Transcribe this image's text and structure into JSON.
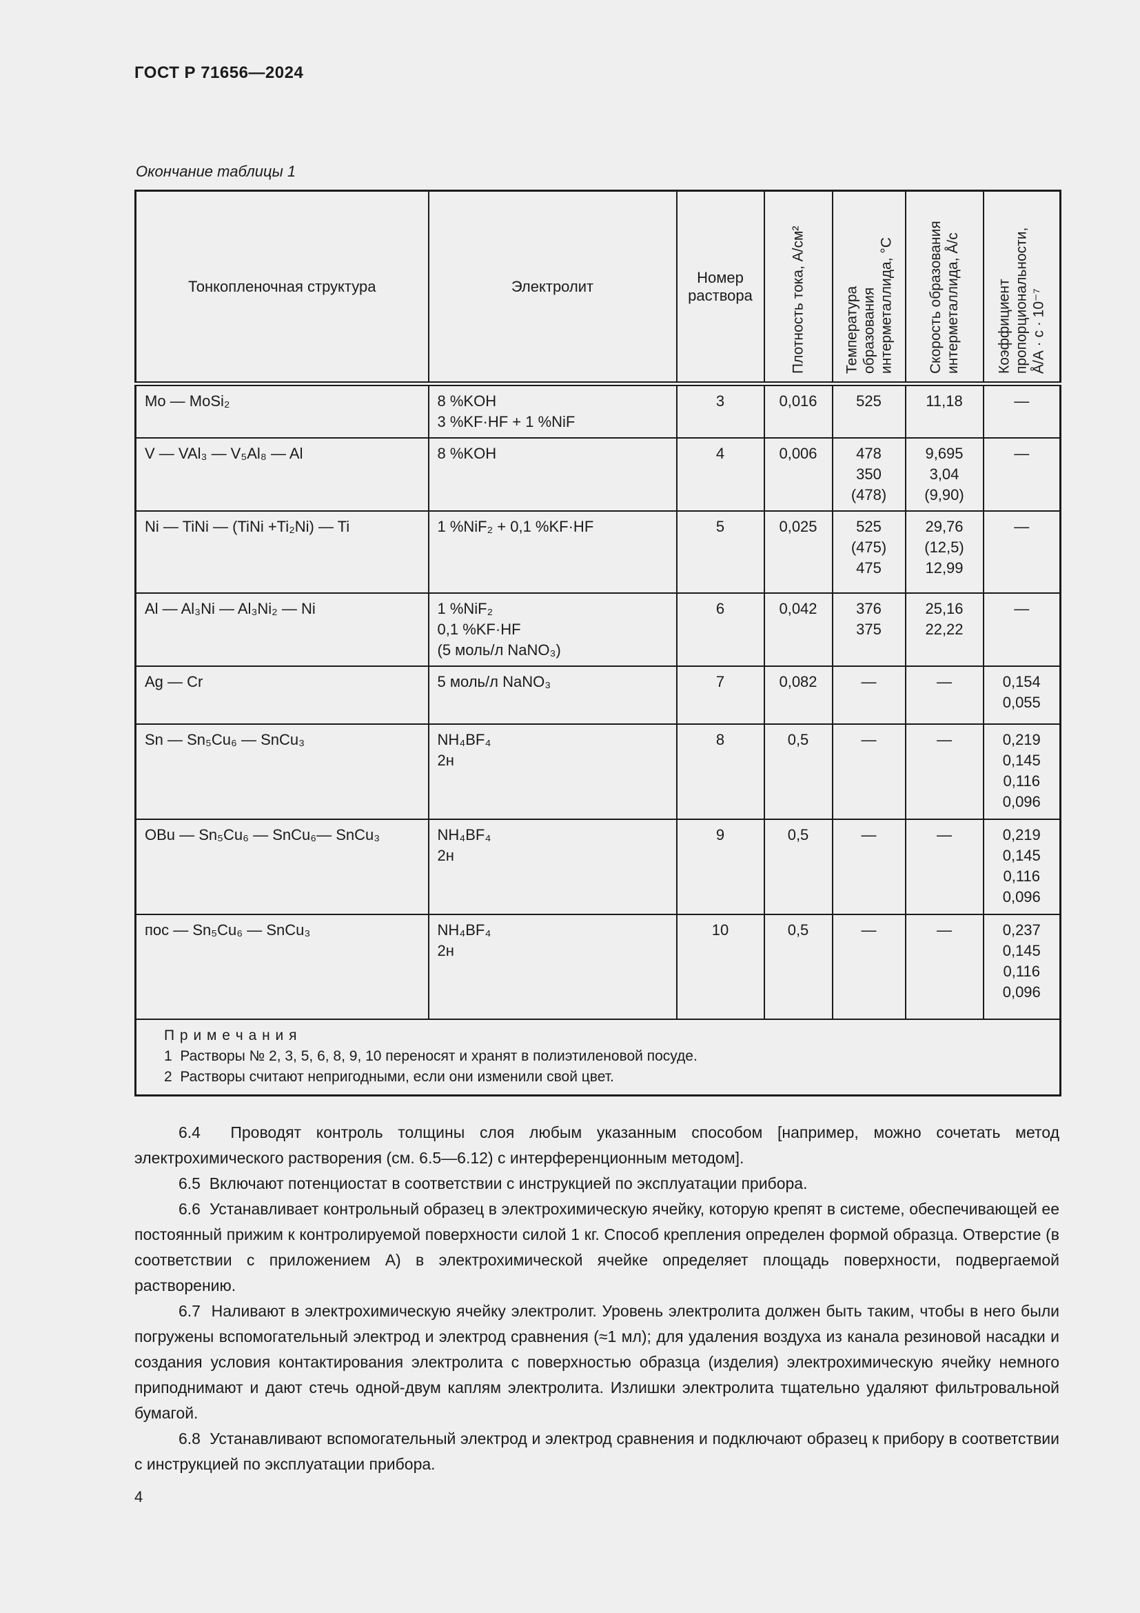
{
  "page": {
    "header": "ГОСТ Р 71656—2024",
    "number": "4",
    "background_color": "#efefef",
    "text_color": "#1b1b1b",
    "border_color": "#1b1b1b"
  },
  "table": {
    "caption": "Окончание таблицы 1",
    "columns": {
      "structure": "Тонкопленочная структура",
      "electrolyte": "Электролит",
      "solution_number": "Номер\nраствора",
      "current_density": "Плотность тока, А/см²",
      "formation_temperature": "Температура\nобразования\nинтерметаллида, °С",
      "formation_rate": "Скорость образования\nинтерметаллида, Å/с",
      "proportionality_coefficient": "Коэффициент\nпропорциональности,\nÅ/А · с · 10⁻⁷"
    },
    "rows": [
      {
        "structure": "Mo — MoSi₂",
        "electrolyte": "8 %KOH\n3 %KF·HF + 1 %NiF",
        "solution_number": "3",
        "current_density": "0,016",
        "formation_temperature": "525",
        "formation_rate": "11,18",
        "proportionality_coefficient": "—"
      },
      {
        "structure": "V — VAl₃ — V₅Al₈ — Al",
        "electrolyte": "8 %KOH",
        "solution_number": "4",
        "current_density": "0,006",
        "formation_temperature": "478\n350\n(478)",
        "formation_rate": "9,695\n3,04\n(9,90)",
        "proportionality_coefficient": "—"
      },
      {
        "structure": "Ni — TiNi — (TiNi +Ti₂Ni) — Ti",
        "electrolyte": "1 %NiF₂ + 0,1 %KF·HF",
        "solution_number": "5",
        "current_density": "0,025",
        "formation_temperature": "525\n(475)\n475",
        "formation_rate": "29,76\n(12,5)\n12,99",
        "proportionality_coefficient": "—"
      },
      {
        "structure": "Al — Al₃Ni — Al₃Ni₂ — Ni",
        "electrolyte": "1 %NiF₂\n0,1 %KF·HF\n(5 моль/л NaNO₃)",
        "solution_number": "6",
        "current_density": "0,042",
        "formation_temperature": "376\n375",
        "formation_rate": "25,16\n22,22",
        "proportionality_coefficient": "—"
      },
      {
        "structure": "Ag — Cr",
        "electrolyte": "5 моль/л NaNO₃",
        "solution_number": "7",
        "current_density": "0,082",
        "formation_temperature": "—",
        "formation_rate": "—",
        "proportionality_coefficient": "0,154\n0,055"
      },
      {
        "structure": "Sn — Sn₅Cu₆ — SnCu₃",
        "electrolyte": "NH₄BF₄\n2н",
        "solution_number": "8",
        "current_density": "0,5",
        "formation_temperature": "—",
        "formation_rate": "—",
        "proportionality_coefficient": "0,219\n0,145\n0,116\n0,096"
      },
      {
        "structure": "OBu — Sn₅Cu₆ — SnCu₆— SnCu₃",
        "electrolyte": "NH₄BF₄\n2н",
        "solution_number": "9",
        "current_density": "0,5",
        "formation_temperature": "—",
        "formation_rate": "—",
        "proportionality_coefficient": "0,219\n0,145\n0,116\n0,096"
      },
      {
        "structure": "пос — Sn₅Cu₆ — SnCu₃",
        "electrolyte": "NH₄BF₄\n2н",
        "solution_number": "10",
        "current_density": "0,5",
        "formation_temperature": "—",
        "formation_rate": "—",
        "proportionality_coefficient": "0,237\n0,145\n0,116\n0,096"
      }
    ],
    "notes": {
      "title": "П р и м е ч а н и я",
      "items": [
        "1  Растворы № 2, 3, 5, 6, 8, 9, 10 переносят и хранят в полиэтиленовой посуде.",
        "2  Растворы считают непригодными, если они изменили свой цвет."
      ]
    }
  },
  "content": {
    "paragraphs": [
      "6.4  Проводят контроль толщины слоя любым указанным способом [например, можно сочетать метод электрохимического растворения (см. 6.5—6.12) с интерференционным методом].",
      "6.5  Включают потенциостат в соответствии с инструкцией по эксплуатации прибора.",
      "6.6  Устанавливает контрольный образец в электрохимическую ячейку, которую крепят в системе, обеспечивающей ее постоянный прижим к контролируемой поверхности силой 1 кг. Способ крепления определен формой образца. Отверстие (в соответствии с приложением А) в электрохимической ячейке определяет площадь поверхности, подвергаемой растворению.",
      "6.7  Наливают в электрохимическую ячейку электролит. Уровень электролита должен быть таким, чтобы в него были погружены вспомогательный электрод и электрод сравнения (≈1 мл); для удаления воздуха из канала резиновой насадки и создания условия контактирования электролита с поверхностью образца (изделия) электрохимическую ячейку немного приподнимают и дают стечь одной-двум каплям электролита. Излишки электролита тщательно удаляют фильтровальной бумагой.",
      "6.8  Устанавливают вспомогательный электрод и электрод сравнения и подключают образец к прибору в соответствии с инструкцией по эксплуатации прибора."
    ]
  }
}
